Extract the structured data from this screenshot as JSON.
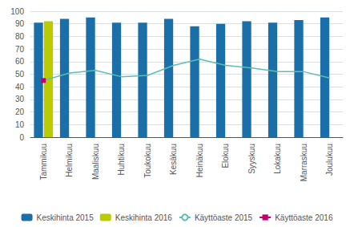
{
  "chart_data": {
    "type": "bar",
    "categories": [
      "Tammikuu",
      "Helmikuu",
      "Maaliskuu",
      "Huhtikuu",
      "Toukokuu",
      "Kesäkuu",
      "Heinäkuu",
      "Elokuu",
      "Syyskuu",
      "Lokakuu",
      "Marraskuu",
      "Joulukuu"
    ],
    "series": [
      {
        "name": "Keskihinta 2015",
        "type": "bar",
        "color": "#1a6fa8",
        "values": [
          91,
          94,
          95,
          91,
          91,
          94,
          88,
          90,
          92,
          91,
          93,
          95
        ]
      },
      {
        "name": "Keskihinta 2016",
        "type": "bar",
        "color": "#b8cc00",
        "values": [
          92,
          null,
          null,
          null,
          null,
          null,
          null,
          null,
          null,
          null,
          null,
          null
        ]
      },
      {
        "name": "Käyttöaste 2015",
        "type": "line",
        "color": "#5bbfb5",
        "values": [
          45,
          51,
          53,
          48,
          49,
          57,
          62,
          57,
          55,
          52,
          52,
          47
        ]
      },
      {
        "name": "Käyttöaste 2016",
        "type": "line",
        "color": "#c0006e",
        "marker": "square",
        "values": [
          45,
          null,
          null,
          null,
          null,
          null,
          null,
          null,
          null,
          null,
          null,
          null
        ]
      }
    ],
    "ylim": [
      0,
      100
    ],
    "yticks": [
      0,
      10,
      20,
      30,
      40,
      50,
      60,
      70,
      80,
      90,
      100
    ],
    "grid": true,
    "legend": "bottom"
  }
}
